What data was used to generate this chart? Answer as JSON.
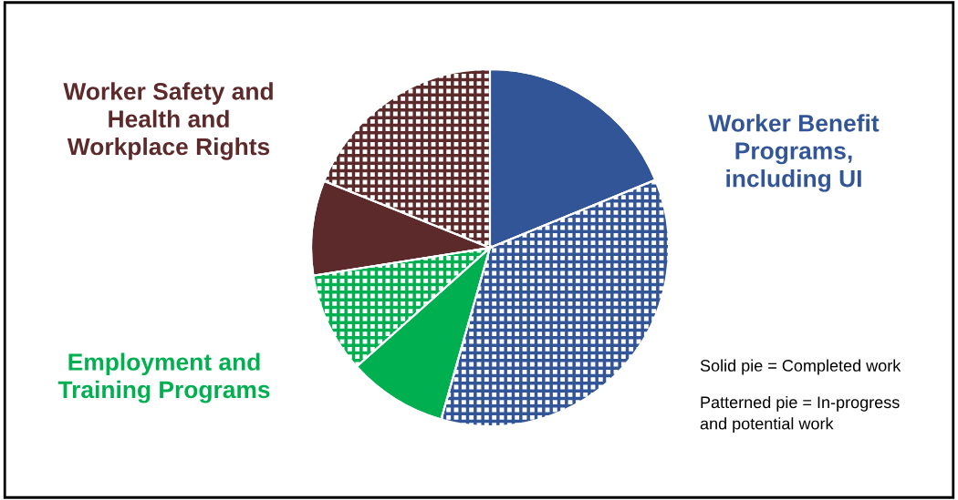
{
  "chart_data": {
    "type": "pie",
    "categories": [
      null,
      null,
      null,
      null,
      null,
      null
    ],
    "values": [
      18.8,
      35.6,
      9.0,
      9.1,
      8.6,
      18.9
    ],
    "colors": [
      "#325597",
      "#325597",
      "#00b050",
      "#00b050",
      "#5c2a2a",
      "#5c2a2a"
    ],
    "annotations": [
      "Worker Benefit\nPrograms,\nincluding UI",
      "Employment and\nTraining Programs",
      "Worker Safety and\nHealth and\nWorkplace Rights",
      "Solid pie = Completed work",
      "Patterned pie = In-progress\nand potential work"
    ]
  }
}
